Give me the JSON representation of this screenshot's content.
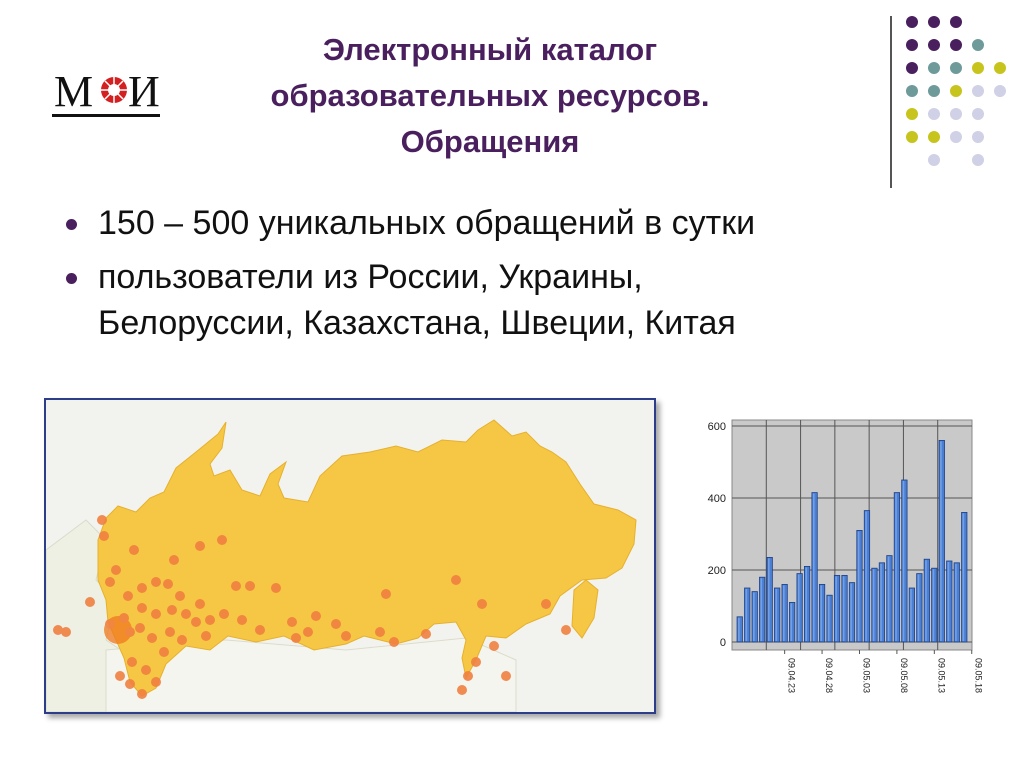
{
  "header": {
    "logo_text": "МЭИ",
    "title_lines": [
      "Электронный каталог",
      "образовательных ресурсов.",
      "Обращения"
    ]
  },
  "bullets": [
    {
      "text_lines": [
        "150 – 500 уникальных обращений в сутки"
      ]
    },
    {
      "text_lines": [
        "пользователи из России, Украины,",
        "Белоруссии, Казахстана, Швеции, Китая"
      ]
    }
  ],
  "colors": {
    "title": "#4a1f5e",
    "bullet": "#4a1f5e",
    "map_land": "#f6c744",
    "map_dots": "#f08040",
    "bar": "#4a7fd4"
  },
  "map": {
    "type": "map",
    "description_icon": "russia-map-visitors"
  },
  "chart_data": {
    "type": "bar",
    "title": "",
    "xlabel": "",
    "ylabel": "",
    "ylim": [
      0,
      600
    ],
    "yticks": [
      0,
      200,
      400,
      600
    ],
    "xtick_labels": [
      "09.04.23",
      "09.04.28",
      "09.05.03",
      "09.05.08",
      "09.05.13",
      "09.05.18"
    ],
    "xtick_indices": [
      6,
      11,
      16,
      21,
      26,
      31
    ],
    "grid": true,
    "series": [
      {
        "name": "",
        "values": [
          70,
          150,
          140,
          180,
          235,
          150,
          160,
          110,
          190,
          210,
          415,
          160,
          130,
          185,
          185,
          165,
          310,
          365,
          205,
          220,
          240,
          415,
          450,
          150,
          190,
          230,
          205,
          560,
          225,
          220,
          360
        ]
      }
    ]
  }
}
